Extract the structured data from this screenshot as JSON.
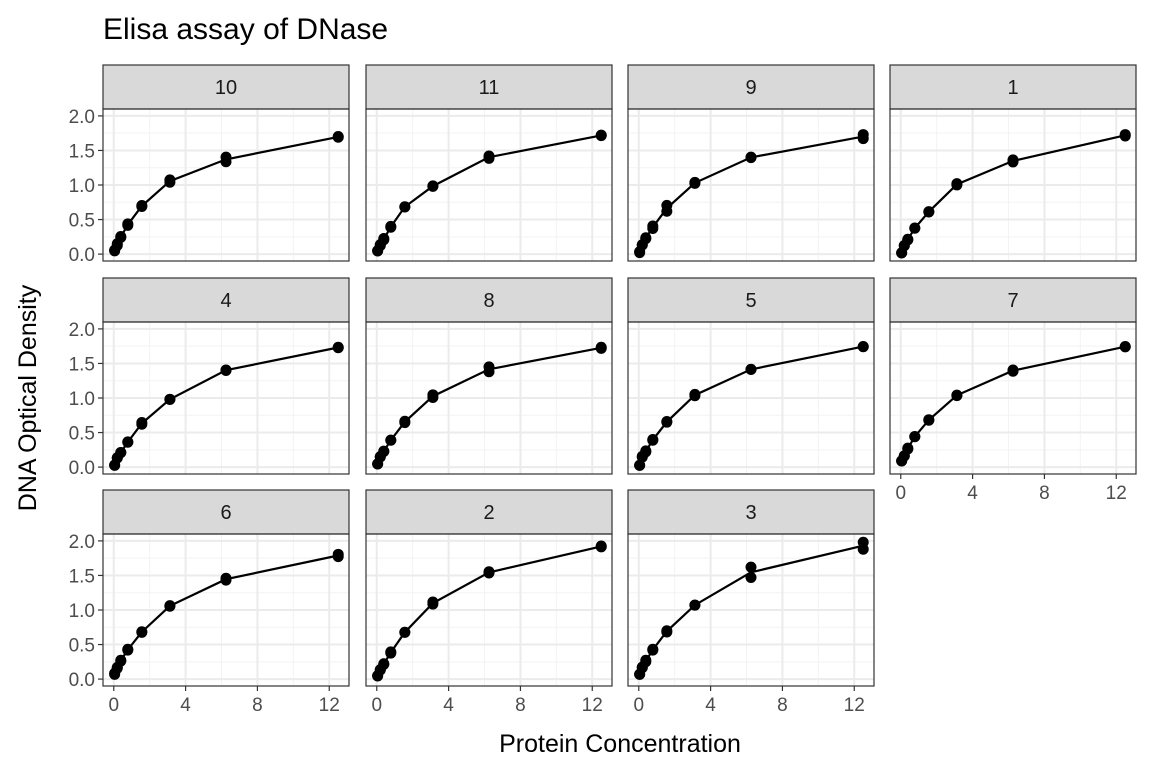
{
  "chart_data": {
    "type": "line",
    "title": "Elisa assay of DNase",
    "xlabel": "Protein Concentration",
    "ylabel": "DNA Optical Density",
    "xlim": [
      -0.6,
      13.1
    ],
    "ylim": [
      -0.1,
      2.1
    ],
    "x_ticks": [
      0,
      4,
      8,
      12
    ],
    "y_ticks": [
      0.0,
      0.5,
      1.0,
      1.5,
      2.0
    ],
    "y_tick_labels": [
      "0.0",
      "0.5",
      "1.0",
      "1.5",
      "2.0"
    ],
    "x_tick_labels": [
      "0",
      "4",
      "8",
      "12"
    ],
    "grid": true,
    "facet_layout": {
      "ncol": 4,
      "nrow": 3
    },
    "concentrations": [
      0.04882812,
      0.1953125,
      0.390625,
      0.78125,
      1.5625,
      3.125,
      6.25,
      12.5
    ],
    "panels": [
      {
        "label": "10",
        "pts": [
          [
            0.0488,
            0.047
          ],
          [
            0.0488,
            0.057
          ],
          [
            0.195,
            0.124
          ],
          [
            0.195,
            0.149
          ],
          [
            0.391,
            0.242
          ],
          [
            0.391,
            0.254
          ],
          [
            0.781,
            0.415
          ],
          [
            0.781,
            0.437
          ],
          [
            1.5625,
            0.689
          ],
          [
            1.5625,
            0.703
          ],
          [
            3.125,
            1.04
          ],
          [
            3.125,
            1.074
          ],
          [
            6.25,
            1.337
          ],
          [
            6.25,
            1.404
          ],
          [
            12.5,
            1.691
          ],
          [
            12.5,
            1.702
          ]
        ]
      },
      {
        "label": "11",
        "pts": [
          [
            0.0488,
            0.045
          ],
          [
            0.0488,
            0.05
          ],
          [
            0.195,
            0.137
          ],
          [
            0.195,
            0.123
          ],
          [
            0.391,
            0.225
          ],
          [
            0.391,
            0.207
          ],
          [
            0.781,
            0.401
          ],
          [
            0.781,
            0.388
          ],
          [
            1.5625,
            0.682
          ],
          [
            1.5625,
            0.685
          ],
          [
            3.125,
            0.98
          ],
          [
            3.125,
            0.988
          ],
          [
            6.25,
            1.42
          ],
          [
            6.25,
            1.385
          ],
          [
            12.5,
            1.715
          ],
          [
            12.5,
            1.721
          ]
        ]
      },
      {
        "label": "9",
        "pts": [
          [
            0.0488,
            0.022
          ],
          [
            0.0488,
            0.035
          ],
          [
            0.195,
            0.132
          ],
          [
            0.195,
            0.135
          ],
          [
            0.391,
            0.224
          ],
          [
            0.391,
            0.237
          ],
          [
            0.781,
            0.371
          ],
          [
            0.781,
            0.407
          ],
          [
            1.5625,
            0.62
          ],
          [
            1.5625,
            0.705
          ],
          [
            3.125,
            1.024
          ],
          [
            3.125,
            1.038
          ],
          [
            6.25,
            1.396
          ],
          [
            6.25,
            1.403
          ],
          [
            12.5,
            1.672
          ],
          [
            12.5,
            1.73
          ]
        ]
      },
      {
        "label": "1",
        "pts": [
          [
            0.0488,
            0.017
          ],
          [
            0.0488,
            0.018
          ],
          [
            0.195,
            0.121
          ],
          [
            0.195,
            0.124
          ],
          [
            0.391,
            0.206
          ],
          [
            0.391,
            0.215
          ],
          [
            0.781,
            0.377
          ],
          [
            0.781,
            0.374
          ],
          [
            1.5625,
            0.614
          ],
          [
            1.5625,
            0.609
          ],
          [
            3.125,
            1.019
          ],
          [
            3.125,
            1.001
          ],
          [
            6.25,
            1.334
          ],
          [
            6.25,
            1.364
          ],
          [
            12.5,
            1.73
          ],
          [
            12.5,
            1.71
          ]
        ]
      },
      {
        "label": "4",
        "pts": [
          [
            0.0488,
            0.025
          ],
          [
            0.0488,
            0.03
          ],
          [
            0.195,
            0.132
          ],
          [
            0.195,
            0.135
          ],
          [
            0.391,
            0.209
          ],
          [
            0.391,
            0.212
          ],
          [
            0.781,
            0.359
          ],
          [
            0.781,
            0.365
          ],
          [
            1.5625,
            0.62
          ],
          [
            1.5625,
            0.645
          ],
          [
            3.125,
            0.98
          ],
          [
            3.125,
            0.981
          ],
          [
            6.25,
            1.398
          ],
          [
            6.25,
            1.406
          ],
          [
            12.5,
            1.735
          ],
          [
            12.5,
            1.728
          ]
        ]
      },
      {
        "label": "8",
        "pts": [
          [
            0.0488,
            0.047
          ],
          [
            0.0488,
            0.045
          ],
          [
            0.195,
            0.151
          ],
          [
            0.195,
            0.145
          ],
          [
            0.391,
            0.226
          ],
          [
            0.391,
            0.231
          ],
          [
            0.781,
            0.388
          ],
          [
            0.781,
            0.39
          ],
          [
            1.5625,
            0.664
          ],
          [
            1.5625,
            0.644
          ],
          [
            3.125,
            1.007
          ],
          [
            3.125,
            1.046
          ],
          [
            6.25,
            1.38
          ],
          [
            6.25,
            1.45
          ],
          [
            12.5,
            1.718
          ],
          [
            12.5,
            1.735
          ]
        ]
      },
      {
        "label": "5",
        "pts": [
          [
            0.0488,
            0.026
          ],
          [
            0.0488,
            0.025
          ],
          [
            0.195,
            0.144
          ],
          [
            0.195,
            0.156
          ],
          [
            0.391,
            0.235
          ],
          [
            0.391,
            0.22
          ],
          [
            0.781,
            0.388
          ],
          [
            0.781,
            0.4
          ],
          [
            1.5625,
            0.65
          ],
          [
            1.5625,
            0.659
          ],
          [
            3.125,
            1.032
          ],
          [
            3.125,
            1.053
          ],
          [
            6.25,
            1.414
          ],
          [
            6.25,
            1.415
          ],
          [
            12.5,
            1.742
          ],
          [
            12.5,
            1.746
          ]
        ]
      },
      {
        "label": "7",
        "pts": [
          [
            0.0488,
            0.089
          ],
          [
            0.0488,
            0.09
          ],
          [
            0.195,
            0.162
          ],
          [
            0.195,
            0.16
          ],
          [
            0.391,
            0.262
          ],
          [
            0.391,
            0.275
          ],
          [
            0.781,
            0.44
          ],
          [
            0.781,
            0.443
          ],
          [
            1.5625,
            0.686
          ],
          [
            1.5625,
            0.678
          ],
          [
            3.125,
            1.035
          ],
          [
            3.125,
            1.042
          ],
          [
            6.25,
            1.388
          ],
          [
            6.25,
            1.405
          ],
          [
            12.5,
            1.74
          ],
          [
            12.5,
            1.745
          ]
        ]
      },
      {
        "label": "6",
        "pts": [
          [
            0.0488,
            0.068
          ],
          [
            0.0488,
            0.085
          ],
          [
            0.195,
            0.17
          ],
          [
            0.195,
            0.158
          ],
          [
            0.391,
            0.261
          ],
          [
            0.391,
            0.273
          ],
          [
            0.781,
            0.432
          ],
          [
            0.781,
            0.42
          ],
          [
            1.5625,
            0.677
          ],
          [
            1.5625,
            0.685
          ],
          [
            3.125,
            1.055
          ],
          [
            3.125,
            1.063
          ],
          [
            6.25,
            1.432
          ],
          [
            6.25,
            1.46
          ],
          [
            12.5,
            1.773
          ],
          [
            12.5,
            1.806
          ]
        ]
      },
      {
        "label": "2",
        "pts": [
          [
            0.0488,
            0.045
          ],
          [
            0.0488,
            0.05
          ],
          [
            0.195,
            0.137
          ],
          [
            0.195,
            0.13
          ],
          [
            0.391,
            0.222
          ],
          [
            0.391,
            0.214
          ],
          [
            0.781,
            0.376
          ],
          [
            0.781,
            0.394
          ],
          [
            1.5625,
            0.678
          ],
          [
            1.5625,
            0.676
          ],
          [
            3.125,
            1.085
          ],
          [
            3.125,
            1.115
          ],
          [
            6.25,
            1.536
          ],
          [
            6.25,
            1.553
          ],
          [
            12.5,
            1.914
          ],
          [
            12.5,
            1.926
          ]
        ]
      },
      {
        "label": "3",
        "pts": [
          [
            0.0488,
            0.07
          ],
          [
            0.0488,
            0.068
          ],
          [
            0.195,
            0.173
          ],
          [
            0.195,
            0.165
          ],
          [
            0.391,
            0.251
          ],
          [
            0.391,
            0.272
          ],
          [
            0.781,
            0.432
          ],
          [
            0.781,
            0.42
          ],
          [
            1.5625,
            0.682
          ],
          [
            1.5625,
            0.7
          ],
          [
            3.125,
            1.071
          ],
          [
            3.125,
            1.07
          ],
          [
            6.25,
            1.47
          ],
          [
            6.25,
            1.62
          ],
          [
            12.5,
            1.88
          ],
          [
            12.5,
            1.98
          ]
        ]
      }
    ]
  }
}
